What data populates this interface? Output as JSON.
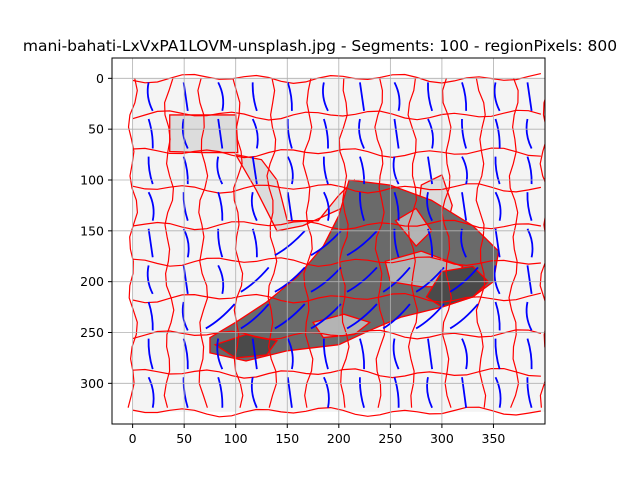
{
  "chart_data": {
    "type": "heatmap",
    "title": "mani-bahati-LxVxPA1LOVM-unsplash.jpg - Segments: 100 - regionPixels: 800",
    "xlabel": "",
    "ylabel": "",
    "xlim": [
      -20,
      400
    ],
    "ylim": [
      340,
      -20
    ],
    "x_ticks": [
      0,
      50,
      100,
      150,
      200,
      250,
      300,
      350
    ],
    "y_ticks": [
      0,
      50,
      100,
      150,
      200,
      250,
      300
    ],
    "grid": true,
    "image_extent": {
      "width": 400,
      "height": 328
    },
    "colors": {
      "background_segment": "#f4f4f4",
      "light_segment": "#dcdcdc",
      "mid_segment": "#b4b4b4",
      "dark_segment": "#6a6a6a",
      "darkest_segment": "#4a4a4a",
      "boundary": "#ff0000",
      "flow_lines": "#0000ff",
      "grid": "#b0b0b0"
    },
    "segment_grid": {
      "columns_x": [
        0,
        35,
        68,
        102,
        135,
        170,
        205,
        240,
        272,
        305,
        338,
        370,
        400
      ],
      "rows_y": [
        0,
        36,
        73,
        108,
        144,
        180,
        216,
        252,
        290,
        328
      ]
    },
    "gray_regions": [
      {
        "tone": "light",
        "points": [
          [
            36,
            36
          ],
          [
            100,
            36
          ],
          [
            102,
            73
          ],
          [
            68,
            73
          ],
          [
            36,
            72
          ]
        ]
      },
      {
        "tone": "light",
        "points": [
          [
            100,
            75
          ],
          [
            125,
            80
          ],
          [
            140,
            100
          ],
          [
            150,
            140
          ],
          [
            180,
            140
          ],
          [
            200,
            115
          ],
          [
            215,
            100
          ],
          [
            220,
            120
          ],
          [
            165,
            145
          ],
          [
            140,
            150
          ],
          [
            120,
            110
          ]
        ]
      },
      {
        "tone": "light",
        "points": [
          [
            280,
            105
          ],
          [
            300,
            95
          ],
          [
            310,
            125
          ],
          [
            300,
            165
          ],
          [
            275,
            150
          ]
        ]
      },
      {
        "tone": "dark",
        "points": [
          [
            210,
            100
          ],
          [
            250,
            105
          ],
          [
            290,
            120
          ],
          [
            330,
            145
          ],
          [
            355,
            170
          ],
          [
            350,
            200
          ],
          [
            330,
            215
          ],
          [
            300,
            225
          ],
          [
            260,
            235
          ],
          [
            230,
            248
          ],
          [
            200,
            262
          ],
          [
            150,
            268
          ],
          [
            110,
            278
          ],
          [
            75,
            270
          ],
          [
            75,
            255
          ],
          [
            100,
            240
          ],
          [
            130,
            220
          ],
          [
            160,
            195
          ],
          [
            185,
            165
          ],
          [
            200,
            135
          ]
        ]
      },
      {
        "tone": "mid",
        "points": [
          [
            245,
            180
          ],
          [
            280,
            170
          ],
          [
            320,
            185
          ],
          [
            310,
            205
          ],
          [
            280,
            205
          ],
          [
            250,
            200
          ]
        ]
      },
      {
        "tone": "darkest",
        "points": [
          [
            300,
            190
          ],
          [
            330,
            185
          ],
          [
            345,
            200
          ],
          [
            330,
            215
          ],
          [
            300,
            225
          ],
          [
            285,
            215
          ]
        ]
      },
      {
        "tone": "mid",
        "points": [
          [
            175,
            240
          ],
          [
            205,
            232
          ],
          [
            230,
            240
          ],
          [
            215,
            252
          ],
          [
            185,
            255
          ]
        ]
      },
      {
        "tone": "darkest",
        "points": [
          [
            80,
            262
          ],
          [
            110,
            252
          ],
          [
            140,
            258
          ],
          [
            130,
            272
          ],
          [
            100,
            275
          ]
        ]
      },
      {
        "tone": "mid",
        "points": [
          [
            255,
            140
          ],
          [
            275,
            128
          ],
          [
            290,
            150
          ],
          [
            275,
            165
          ]
        ]
      }
    ]
  }
}
